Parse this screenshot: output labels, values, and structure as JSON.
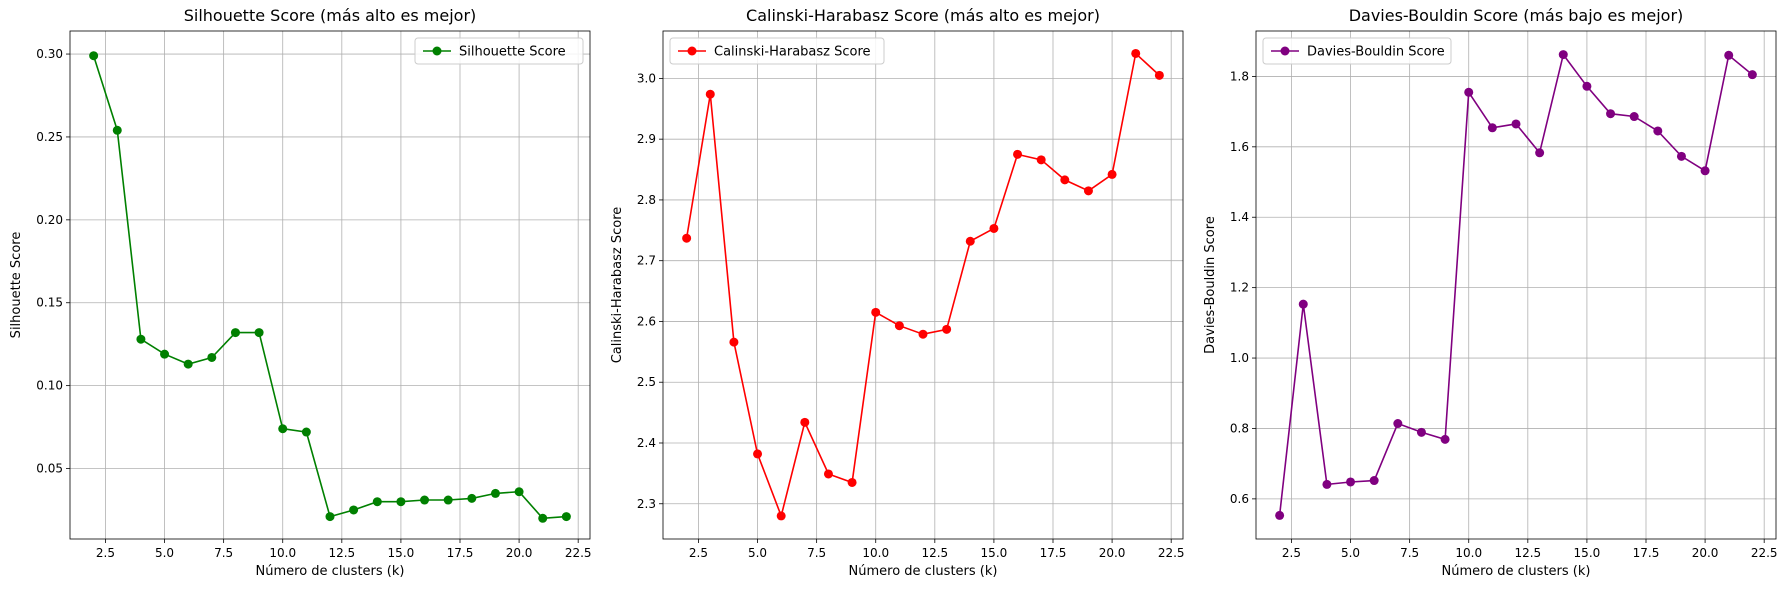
{
  "chart_data": [
    {
      "type": "line",
      "title": "Silhouette Score (más alto es mejor)",
      "xlabel": "Número de clusters (k)",
      "ylabel": "Silhouette Score",
      "xlim": [
        1.0,
        23.0
      ],
      "ylim": [
        0.0075,
        0.3139
      ],
      "xticks": [
        "2.5",
        "5.0",
        "7.5",
        "10.0",
        "12.5",
        "15.0",
        "17.5",
        "20.0",
        "22.5"
      ],
      "yticks": [
        "0.05",
        "0.10",
        "0.15",
        "0.20",
        "0.25",
        "0.30"
      ],
      "grid": true,
      "legend_position": "upper-right",
      "series": [
        {
          "name": "Silhouette Score",
          "color": "#008000",
          "marker": "circle",
          "x": [
            2,
            3,
            4,
            5,
            6,
            7,
            8,
            9,
            10,
            11,
            12,
            13,
            14,
            15,
            16,
            17,
            18,
            19,
            20,
            21,
            22
          ],
          "y": [
            0.299,
            0.254,
            0.128,
            0.119,
            0.113,
            0.117,
            0.132,
            0.132,
            0.074,
            0.072,
            0.021,
            0.025,
            0.03,
            0.03,
            0.031,
            0.031,
            0.032,
            0.035,
            0.036,
            0.02,
            0.021
          ]
        }
      ]
    },
    {
      "type": "line",
      "title": "Calinski-Harabasz Score (más alto es mejor)",
      "xlabel": "Número de clusters (k)",
      "ylabel": "Calinski-Harabasz Score",
      "xlim": [
        1.0,
        23.0
      ],
      "ylim": [
        2.242,
        3.078
      ],
      "xticks": [
        "2.5",
        "5.0",
        "7.5",
        "10.0",
        "12.5",
        "15.0",
        "17.5",
        "20.0",
        "22.5"
      ],
      "yticks": [
        "2.3",
        "2.4",
        "2.5",
        "2.6",
        "2.7",
        "2.8",
        "2.9",
        "3.0"
      ],
      "grid": true,
      "legend_position": "upper-left",
      "series": [
        {
          "name": "Calinski-Harabasz Score",
          "color": "#ff0000",
          "marker": "circle",
          "x": [
            2,
            3,
            4,
            5,
            6,
            7,
            8,
            9,
            10,
            11,
            12,
            13,
            14,
            15,
            16,
            17,
            18,
            19,
            20,
            21,
            22
          ],
          "y": [
            2.737,
            2.974,
            2.566,
            2.382,
            2.28,
            2.434,
            2.349,
            2.335,
            2.615,
            2.593,
            2.579,
            2.587,
            2.732,
            2.753,
            2.875,
            2.866,
            2.833,
            2.815,
            2.842,
            3.041,
            3.005
          ]
        }
      ]
    },
    {
      "type": "line",
      "title": "Davies-Bouldin Score (más bajo es mejor)",
      "xlabel": "Número de clusters (k)",
      "ylabel": "Davies-Bouldin Score",
      "xlim": [
        1.0,
        23.0
      ],
      "ylim": [
        0.486,
        1.929
      ],
      "xticks": [
        "2.5",
        "5.0",
        "7.5",
        "10.0",
        "12.5",
        "15.0",
        "17.5",
        "20.0",
        "22.5"
      ],
      "yticks": [
        "0.6",
        "0.8",
        "1.0",
        "1.2",
        "1.4",
        "1.6",
        "1.8"
      ],
      "grid": true,
      "legend_position": "upper-left",
      "series": [
        {
          "name": "Davies-Bouldin Score",
          "color": "#800080",
          "marker": "circle",
          "x": [
            2,
            3,
            4,
            5,
            6,
            7,
            8,
            9,
            10,
            11,
            12,
            13,
            14,
            15,
            16,
            17,
            18,
            19,
            20,
            21,
            22
          ],
          "y": [
            0.553,
            1.153,
            0.641,
            0.648,
            0.652,
            0.814,
            0.789,
            0.769,
            1.755,
            1.654,
            1.665,
            1.583,
            1.862,
            1.772,
            1.694,
            1.686,
            1.645,
            1.573,
            1.532,
            1.86,
            1.805
          ]
        }
      ]
    }
  ]
}
